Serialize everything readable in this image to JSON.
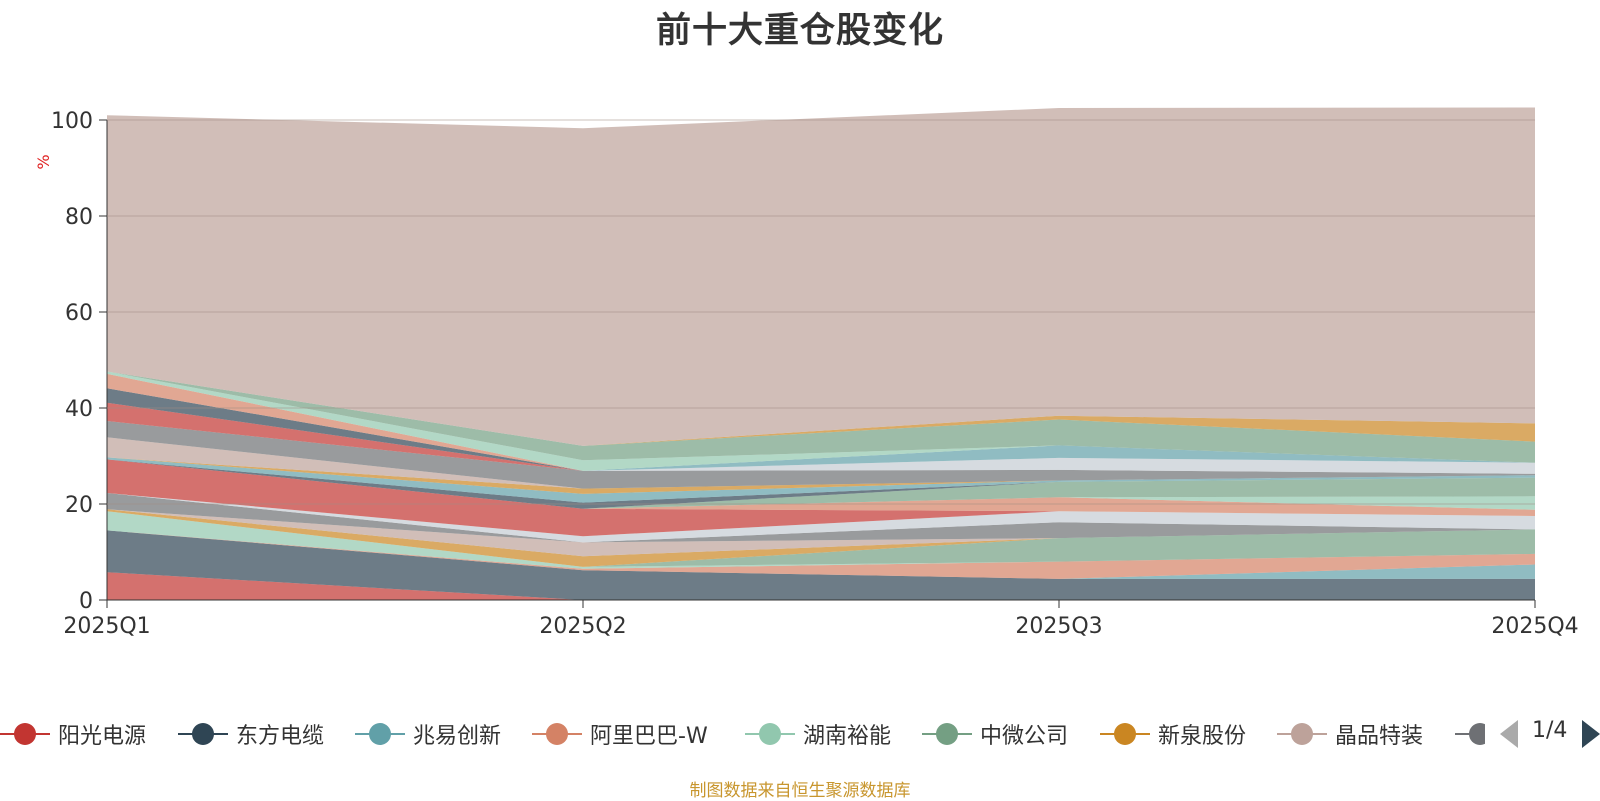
{
  "chart_data": {
    "type": "area",
    "stacked": true,
    "title": "前十大重仓股变化",
    "ylabel": "%",
    "ylim": [
      0,
      100
    ],
    "yticks": [
      0,
      20,
      40,
      60,
      80,
      100
    ],
    "categories": [
      "2025Q1",
      "2025Q2",
      "2025Q3",
      "2025Q4"
    ],
    "grid": true,
    "legend_position": "bottom",
    "series": [
      {
        "name": "阳光电源",
        "color": "#c23531",
        "values": [
          5.8,
          0,
          0,
          0
        ]
      },
      {
        "name": "东方电缆",
        "color": "#2f4554",
        "values": [
          8.7,
          6.2,
          4.4,
          4.4
        ]
      },
      {
        "name": "兆易创新",
        "color": "#61a0a8",
        "values": [
          0,
          0,
          0,
          3.0
        ]
      },
      {
        "name": "阿里巴巴-W",
        "color": "#d48265",
        "values": [
          0,
          0.3,
          3.6,
          2.2
        ]
      },
      {
        "name": "湖南裕能",
        "color": "#91c7ae",
        "values": [
          4.0,
          0.4,
          0,
          0
        ]
      },
      {
        "name": "中微公司",
        "color": "#749f83",
        "values": [
          0,
          0,
          4.9,
          5.1
        ]
      },
      {
        "name": "新泉股份",
        "color": "#ca8622",
        "values": [
          0.4,
          2.2,
          0,
          0
        ]
      },
      {
        "name": "晶品特装",
        "color": "#bda29a",
        "values": [
          0,
          2.9,
          0,
          0
        ]
      },
      {
        "name": "",
        "color": "#6e7074",
        "values": [
          3.4,
          0,
          3.3,
          0
        ]
      },
      {
        "name": "",
        "color": "#c4ccd3",
        "values": [
          0,
          1.3,
          2.3,
          2.8
        ]
      },
      {
        "name": "",
        "color": "#c23531",
        "values": [
          7.0,
          5.7,
          0,
          0
        ]
      },
      {
        "name": "",
        "color": "#d48265",
        "values": [
          0,
          0,
          2.9,
          1.3
        ]
      },
      {
        "name": "",
        "color": "#91c7ae",
        "values": [
          0,
          0,
          0,
          2.8
        ]
      },
      {
        "name": "",
        "color": "#749f83",
        "values": [
          0,
          0,
          3.2,
          3.9
        ]
      },
      {
        "name": "",
        "color": "#2f4554",
        "values": [
          0,
          1.3,
          0,
          0
        ]
      },
      {
        "name": "",
        "color": "#61a0a8",
        "values": [
          0.4,
          1.8,
          0.3,
          0.5
        ]
      },
      {
        "name": "",
        "color": "#ca8622",
        "values": [
          0,
          1.1,
          0,
          0
        ]
      },
      {
        "name": "",
        "color": "#bda29a",
        "values": [
          4.2,
          0,
          0,
          0
        ]
      },
      {
        "name": "",
        "color": "#6e7074",
        "values": [
          3.4,
          3.7,
          2.2,
          0.3
        ]
      },
      {
        "name": "",
        "color": "#c4ccd3",
        "values": [
          0,
          0,
          2.5,
          2.3
        ]
      },
      {
        "name": "",
        "color": "#c23531",
        "values": [
          3.8,
          0,
          0,
          0
        ]
      },
      {
        "name": "",
        "color": "#2f4554",
        "values": [
          3.0,
          0,
          0,
          0
        ]
      },
      {
        "name": "",
        "color": "#61a0a8",
        "values": [
          0,
          0,
          2.6,
          0
        ]
      },
      {
        "name": "",
        "color": "#d48265",
        "values": [
          3.0,
          0,
          0,
          0
        ]
      },
      {
        "name": "",
        "color": "#91c7ae",
        "values": [
          0.5,
          2.2,
          0,
          0
        ]
      },
      {
        "name": "",
        "color": "#749f83",
        "values": [
          0,
          3.0,
          5.4,
          4.4
        ]
      },
      {
        "name": "",
        "color": "#ca8622",
        "values": [
          0,
          0,
          0.8,
          3.8
        ]
      },
      {
        "name": "",
        "color": "#bda29a",
        "values": [
          53.4,
          66.2,
          64.1,
          65.8
        ]
      }
    ]
  },
  "legend": {
    "items": [
      {
        "label": "阳光电源",
        "color": "#c23531"
      },
      {
        "label": "东方电缆",
        "color": "#2f4554"
      },
      {
        "label": "兆易创新",
        "color": "#61a0a8"
      },
      {
        "label": "阿里巴巴-W",
        "color": "#d48265"
      },
      {
        "label": "湖南裕能",
        "color": "#91c7ae"
      },
      {
        "label": "中微公司",
        "color": "#749f83"
      },
      {
        "label": "新泉股份",
        "color": "#ca8622"
      },
      {
        "label": "晶品特装",
        "color": "#bda29a"
      },
      {
        "label": "",
        "color": "#6e7074"
      }
    ],
    "page_indicator": "1/4",
    "prev_icon": "triangle-left-icon",
    "next_icon": "triangle-right-icon"
  },
  "footer": {
    "source_note": "制图数据来自恒生聚源数据库"
  }
}
